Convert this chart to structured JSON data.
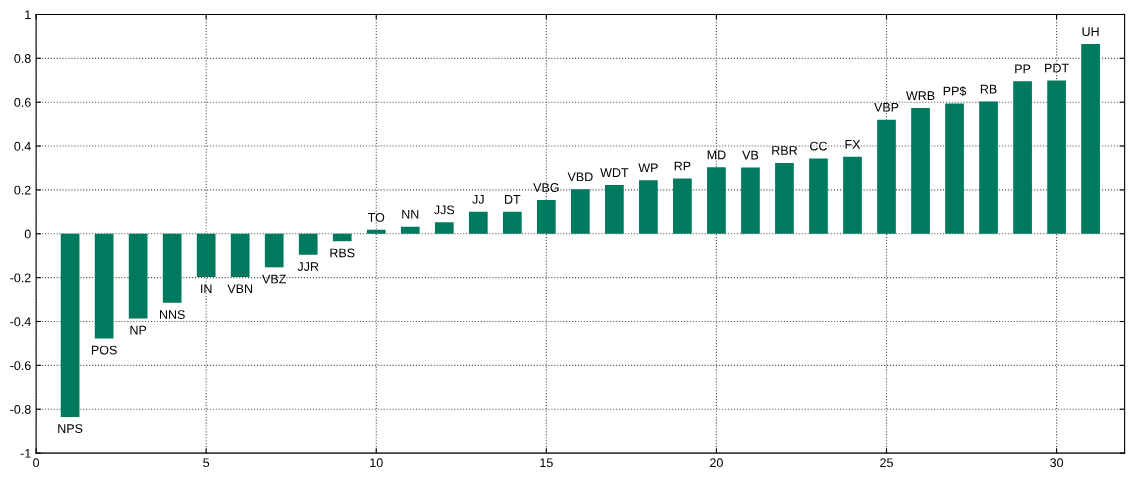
{
  "chart_data": {
    "type": "bar",
    "x": [
      1,
      2,
      3,
      4,
      5,
      6,
      7,
      8,
      9,
      10,
      11,
      12,
      13,
      14,
      15,
      16,
      17,
      18,
      19,
      20,
      21,
      22,
      23,
      24,
      25,
      26,
      27,
      28,
      29,
      30,
      31
    ],
    "values": [
      -0.835,
      -0.477,
      -0.386,
      -0.315,
      -0.197,
      -0.197,
      -0.153,
      -0.096,
      -0.034,
      0.018,
      0.032,
      0.052,
      0.1,
      0.1,
      0.154,
      0.203,
      0.222,
      0.244,
      0.252,
      0.303,
      0.302,
      0.323,
      0.343,
      0.351,
      0.52,
      0.573,
      0.594,
      0.603,
      0.695,
      0.699,
      0.865
    ],
    "color": "#007a5e",
    "annotations": [
      {
        "text": "NPS",
        "x": 1,
        "y": -0.835
      },
      {
        "text": "POS",
        "x": 2,
        "y": -0.477
      },
      {
        "text": "NP",
        "x": 3,
        "y": -0.386
      },
      {
        "text": "NNS",
        "x": 4,
        "y": -0.315
      },
      {
        "text": "IN",
        "x": 5,
        "y": -0.197
      },
      {
        "text": "VBN",
        "x": 6,
        "y": -0.197
      },
      {
        "text": "VBZ",
        "x": 7,
        "y": -0.153
      },
      {
        "text": "JJR",
        "x": 8,
        "y": -0.096
      },
      {
        "text": "RBS",
        "x": 9,
        "y": -0.034
      },
      {
        "text": "TO",
        "x": 10,
        "y": 0.018
      },
      {
        "text": "NN",
        "x": 11,
        "y": 0.032
      },
      {
        "text": "JJS",
        "x": 12,
        "y": 0.052
      },
      {
        "text": "JJ",
        "x": 13,
        "y": 0.1
      },
      {
        "text": "DT",
        "x": 14,
        "y": 0.1
      },
      {
        "text": "VBG",
        "x": 15,
        "y": 0.154
      },
      {
        "text": "VBD",
        "x": 16,
        "y": 0.203
      },
      {
        "text": "WDT",
        "x": 17,
        "y": 0.222
      },
      {
        "text": "WP",
        "x": 18,
        "y": 0.244
      },
      {
        "text": "RP",
        "x": 19,
        "y": 0.252
      },
      {
        "text": "MD",
        "x": 20,
        "y": 0.303
      },
      {
        "text": "VB",
        "x": 21,
        "y": 0.302
      },
      {
        "text": "RBR",
        "x": 22,
        "y": 0.323
      },
      {
        "text": "CC",
        "x": 23,
        "y": 0.343
      },
      {
        "text": "FX",
        "x": 24,
        "y": 0.351
      },
      {
        "text": "VBP",
        "x": 25,
        "y": 0.52
      },
      {
        "text": "WRB",
        "x": 26,
        "y": 0.573
      },
      {
        "text": "PP$",
        "x": 27,
        "y": 0.594
      },
      {
        "text": "RB",
        "x": 28,
        "y": 0.603
      },
      {
        "text": "PP",
        "x": 29,
        "y": 0.695
      },
      {
        "text": "PDT",
        "x": 30,
        "y": 0.699
      },
      {
        "text": "UH",
        "x": 31,
        "y": 0.865
      }
    ],
    "xlim": [
      0,
      32
    ],
    "xticks": [
      0,
      5,
      10,
      15,
      20,
      25,
      30
    ],
    "ylim": [
      -1,
      1
    ],
    "yticks": [
      -1,
      {
        "value": -0.8,
        "label": "-0.8"
      },
      {
        "value": -0.6,
        "label": "-0.6"
      },
      {
        "value": -0.4,
        "label": "-0.4"
      },
      {
        "value": -0.2,
        "label": "-0.2"
      },
      0,
      0.2,
      0.4,
      0.6,
      0.8,
      1
    ],
    "grid": true
  }
}
